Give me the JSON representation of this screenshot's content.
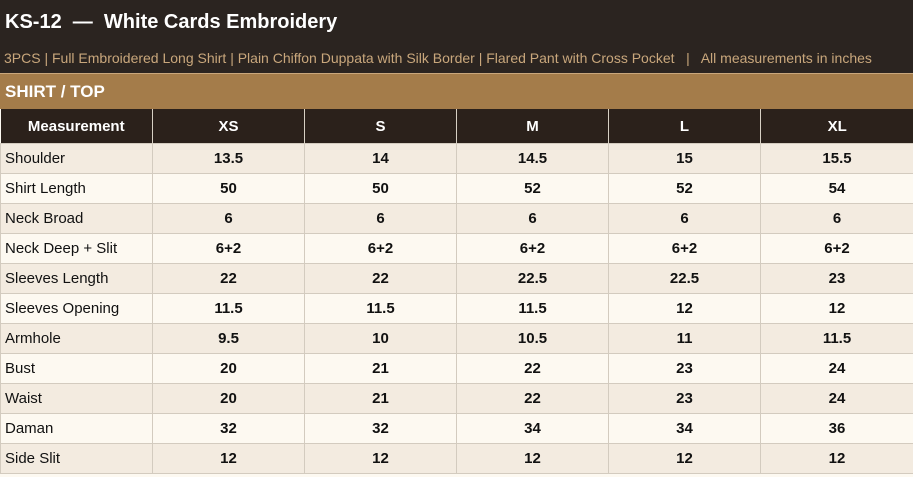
{
  "header": {
    "title": "KS-12  —  White Cards Embroidery",
    "subtitle": "3PCS | Full Embroidered Long Shirt | Plain Chiffon Duppata with Silk Border | Flared Pant with Cross Pocket   |   All measurements in inches"
  },
  "section": "SHIRT / TOP",
  "table": {
    "columns": [
      "Measurement",
      "XS",
      "S",
      "M",
      "L",
      "XL"
    ],
    "rows": [
      [
        "Shoulder",
        "13.5",
        "14",
        "14.5",
        "15",
        "15.5"
      ],
      [
        "Shirt Length",
        "50",
        "50",
        "52",
        "52",
        "54"
      ],
      [
        "Neck Broad",
        "6",
        "6",
        "6",
        "6",
        "6"
      ],
      [
        "Neck Deep + Slit",
        "6+2",
        "6+2",
        "6+2",
        "6+2",
        "6+2"
      ],
      [
        "Sleeves Length",
        "22",
        "22",
        "22.5",
        "22.5",
        "23"
      ],
      [
        "Sleeves Opening",
        "11.5",
        "11.5",
        "11.5",
        "12",
        "12"
      ],
      [
        "Armhole",
        "9.5",
        "10",
        "10.5",
        "11",
        "11.5"
      ],
      [
        "Bust",
        "20",
        "21",
        "22",
        "23",
        "24"
      ],
      [
        "Waist",
        "20",
        "21",
        "22",
        "23",
        "24"
      ],
      [
        "Daman",
        "32",
        "32",
        "34",
        "34",
        "36"
      ],
      [
        "Side Slit",
        "12",
        "12",
        "12",
        "12",
        "12"
      ]
    ]
  }
}
